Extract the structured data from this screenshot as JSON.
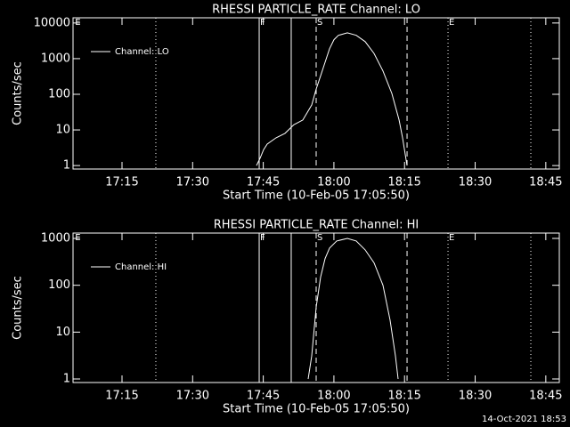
{
  "chart_data": [
    {
      "type": "line",
      "title": "RHESSI PARTICLE_RATE Channel: LO",
      "x_label": "Start Time (10-Feb-05 17:05:50)",
      "y_label": "Counts/sec",
      "log_y": true,
      "legend": "upper left",
      "xlim": [
        "17:04:36",
        "18:47:52"
      ],
      "xticks": [
        "17:15",
        "17:30",
        "17:45",
        "18:00",
        "18:15",
        "18:30",
        "18:45"
      ],
      "ylim": [
        0.8,
        14000
      ],
      "yticks": [
        1,
        10,
        100,
        1000,
        10000
      ],
      "x": [
        "17:43:34",
        "17:44:19",
        "17:45:04",
        "17:45:50",
        "17:47:43",
        "17:49:37",
        "17:51:30",
        "17:53:24",
        "17:55:17",
        "17:56:14",
        "17:57:11",
        "17:58:08",
        "17:59:04",
        "18:00:01",
        "18:00:58",
        "18:02:51",
        "18:04:45",
        "18:06:38",
        "18:08:32",
        "18:10:25",
        "18:12:19",
        "18:13:50",
        "18:14:35",
        "18:15:32"
      ],
      "series": [
        {
          "name": "Channel: LO",
          "color": "#ffffff",
          "values": [
            1,
            1.6,
            2.8,
            4,
            6,
            8,
            14,
            19,
            50,
            140,
            330,
            790,
            1900,
            3400,
            4500,
            5300,
            4500,
            3000,
            1400,
            450,
            105,
            19,
            6,
            1
          ]
        }
      ],
      "events": [
        {
          "x": "17:04:50",
          "label": "E",
          "style": "none"
        },
        {
          "x": "17:22:11",
          "style": "dotted"
        },
        {
          "x": "17:44:08",
          "label": "F",
          "style": "solid"
        },
        {
          "x": "17:50:56",
          "style": "solid"
        },
        {
          "x": "17:56:14",
          "label": "S",
          "style": "dashed"
        },
        {
          "x": "18:15:32",
          "style": "dashed"
        },
        {
          "x": "18:24:14",
          "label": "E",
          "style": "dotted"
        },
        {
          "x": "18:41:49",
          "style": "dotted"
        }
      ]
    },
    {
      "type": "line",
      "title": "RHESSI PARTICLE_RATE Channel: HI",
      "x_label": "Start Time (10-Feb-05 17:05:50)",
      "y_label": "Counts/sec",
      "log_y": true,
      "legend": "upper left",
      "xlim": [
        "17:04:36",
        "18:47:52"
      ],
      "xticks": [
        "17:15",
        "17:30",
        "17:45",
        "18:00",
        "18:15",
        "18:30",
        "18:45"
      ],
      "ylim": [
        0.84,
        1300
      ],
      "yticks": [
        1,
        10,
        100,
        1000
      ],
      "x": [
        "17:54:32",
        "17:55:17",
        "17:56:14",
        "17:57:11",
        "17:58:08",
        "17:59:04",
        "18:00:35",
        "18:02:51",
        "18:04:45",
        "18:06:38",
        "18:08:32",
        "18:10:25",
        "18:11:56",
        "18:13:04",
        "18:13:38"
      ],
      "series": [
        {
          "name": "Channel: HI",
          "color": "#ffffff",
          "values": [
            1,
            3.1,
            34,
            150,
            370,
            620,
            880,
            1000,
            880,
            570,
            300,
            100,
            18,
            3.1,
            1
          ]
        }
      ],
      "events": [
        {
          "x": "17:04:50",
          "label": "E",
          "style": "none"
        },
        {
          "x": "17:22:11",
          "style": "dotted"
        },
        {
          "x": "17:44:08",
          "label": "F",
          "style": "solid"
        },
        {
          "x": "17:50:56",
          "style": "solid"
        },
        {
          "x": "17:56:14",
          "label": "S",
          "style": "dashed"
        },
        {
          "x": "18:15:32",
          "style": "dashed"
        },
        {
          "x": "18:24:14",
          "label": "E",
          "style": "dotted"
        },
        {
          "x": "18:41:49",
          "style": "dotted"
        }
      ]
    }
  ],
  "footer": "14-Oct-2021 18:53"
}
